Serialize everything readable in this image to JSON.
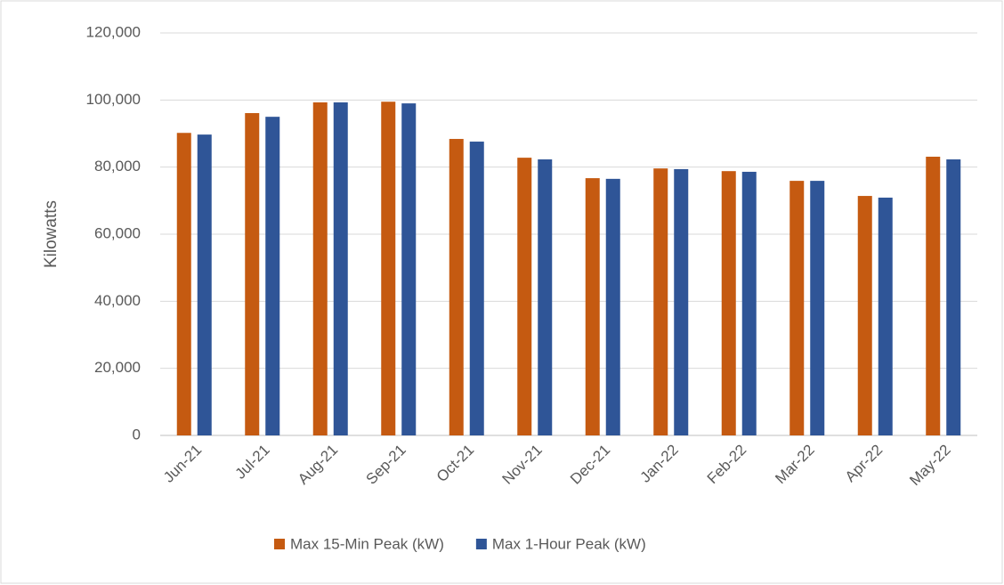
{
  "chart_data": {
    "type": "bar",
    "ylabel": "Kilowatts",
    "categories": [
      "Jun-21",
      "Jul-21",
      "Aug-21",
      "Sep-21",
      "Oct-21",
      "Nov-21",
      "Dec-21",
      "Jan-22",
      "Feb-22",
      "Mar-22",
      "Apr-22",
      "May-22"
    ],
    "series": [
      {
        "name": "Max 15-Min Peak (kW)",
        "color": "#c55a11",
        "values": [
          90200,
          96100,
          99300,
          99500,
          88400,
          82800,
          76700,
          79600,
          78800,
          75900,
          71400,
          83100
        ]
      },
      {
        "name": "Max 1-Hour Peak (kW)",
        "color": "#2f5597",
        "values": [
          89700,
          95000,
          99300,
          99000,
          87600,
          82300,
          76500,
          79400,
          78600,
          75900,
          70900,
          82300
        ]
      }
    ],
    "ylim": [
      0,
      120000
    ],
    "yticks": [
      0,
      {
        "value": 20000,
        "label": "20,000"
      },
      {
        "value": 40000,
        "label": "40,000"
      },
      {
        "value": 60000,
        "label": "60,000"
      },
      {
        "value": 80000,
        "label": "80,000"
      },
      {
        "value": 100000,
        "label": "100,000"
      },
      {
        "value": 120000,
        "label": "120,000"
      }
    ],
    "grid": true,
    "legend": "bottom"
  }
}
